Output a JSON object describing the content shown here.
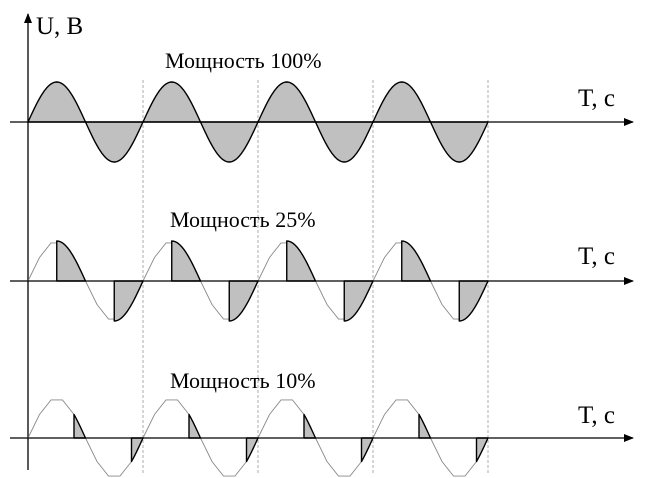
{
  "axes": {
    "y_label": "U, В",
    "x_label": "T, с"
  },
  "panels": [
    {
      "title": "Мощность 100%",
      "power_percent": 100
    },
    {
      "title": "Мощность 25%",
      "power_percent": 25
    },
    {
      "title": "Мощность 10%",
      "power_percent": 10
    }
  ],
  "colors": {
    "fill": "#c0c0c0",
    "line": "#000000",
    "thin_wave": "#8a8a8a",
    "grid": "#999999"
  }
}
